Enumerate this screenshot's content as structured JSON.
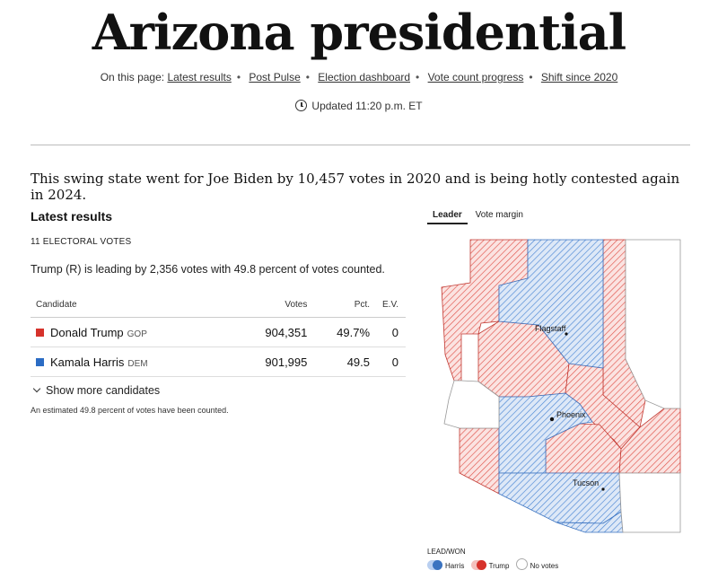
{
  "title": "Arizona presidential",
  "nav": {
    "prefix": "On this page:",
    "links": [
      "Latest results",
      "Post Pulse",
      "Election dashboard",
      "Vote count progress",
      "Shift since 2020"
    ]
  },
  "updated": "Updated 11:20 p.m. ET",
  "intro": "This swing state went for Joe Biden by 10,457 votes in 2020 and is being hotly contested again in 2024.",
  "results": {
    "heading": "Latest results",
    "electoral_votes": "11 ELECTORAL VOTES",
    "status": "Trump (R) is leading by 2,356 votes with 49.8 percent of votes counted.",
    "columns": [
      "Candidate",
      "Votes",
      "Pct.",
      "E.V."
    ],
    "rows": [
      {
        "name": "Donald Trump",
        "party": "GOP",
        "votes": "904,351",
        "pct": "49.7%",
        "ev": "0",
        "color": "#d6322b"
      },
      {
        "name": "Kamala Harris",
        "party": "DEM",
        "votes": "901,995",
        "pct": "49.5",
        "ev": "0",
        "color": "#2b6cc4"
      }
    ],
    "more": "Show more candidates",
    "estimate": "An estimated 49.8 percent of votes have been counted."
  },
  "map": {
    "tabs": [
      "Leader",
      "Vote margin"
    ],
    "active_tab": "Leader",
    "cities": [
      "Flagstaff",
      "Phoenix",
      "Tucson"
    ],
    "colors": {
      "harris": "#4a86d4",
      "trump": "#e0534b"
    },
    "legend": {
      "title": "LEAD/WON",
      "items": [
        "Harris",
        "Trump",
        "No votes"
      ]
    }
  }
}
